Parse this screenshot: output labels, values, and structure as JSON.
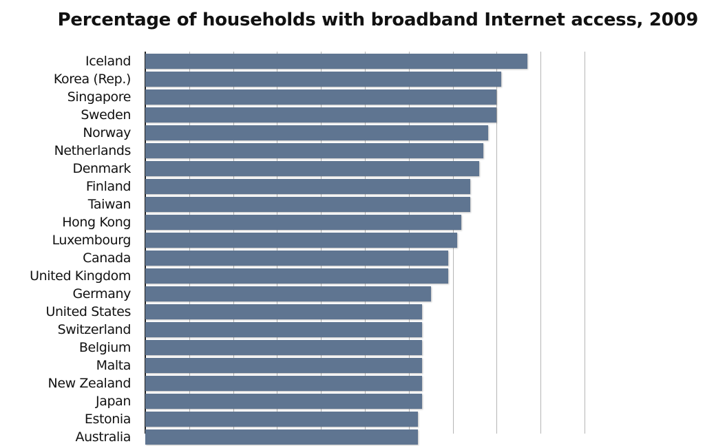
{
  "title": "Percentage of households with broadband Internet access, 2009",
  "colors": {
    "bar": "#5f7591",
    "gridline": "#b5b5b5",
    "axis": "#222222",
    "text": "#111111"
  },
  "chart_data": {
    "type": "bar",
    "orientation": "horizontal",
    "title": "Percentage of households with broadband Internet access, 2009",
    "xlabel": "",
    "ylabel": "",
    "xlim": [
      0,
      100
    ],
    "grid": true,
    "grid_step": 10,
    "legend": null,
    "categories": [
      "Iceland",
      "Korea (Rep.)",
      "Singapore",
      "Sweden",
      "Norway",
      "Netherlands",
      "Denmark",
      "Finland",
      "Taiwan",
      "Hong Kong",
      "Luxembourg",
      "Canada",
      "United Kingdom",
      "Germany",
      "United States",
      "Switzerland",
      "Belgium",
      "Malta",
      "New Zealand",
      "Japan",
      "Estonia",
      "Australia"
    ],
    "values": [
      87,
      81,
      80,
      80,
      78,
      77,
      76,
      74,
      74,
      72,
      71,
      69,
      69,
      65,
      63,
      63,
      63,
      63,
      63,
      63,
      62,
      62
    ],
    "units": "%"
  }
}
